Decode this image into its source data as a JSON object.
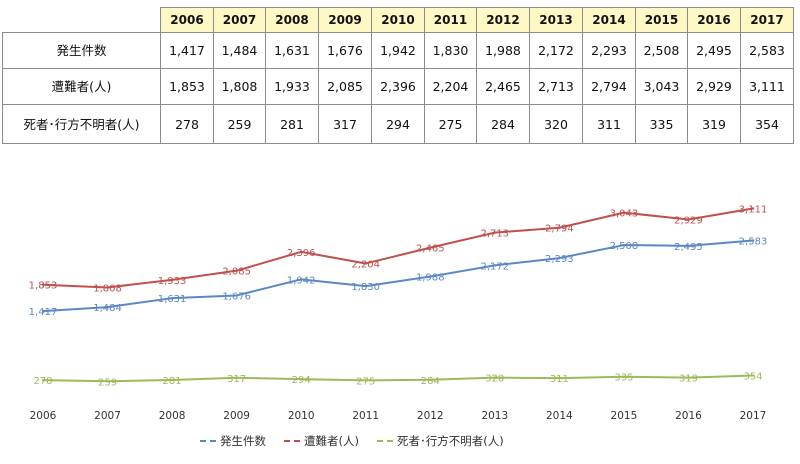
{
  "table": {
    "years": [
      "2006",
      "2007",
      "2008",
      "2009",
      "2010",
      "2011",
      "2012",
      "2013",
      "2014",
      "2015",
      "2016",
      "2017"
    ],
    "rows": [
      {
        "label": "発生件数",
        "values": [
          "1,417",
          "1,484",
          "1,631",
          "1,676",
          "1,942",
          "1,830",
          "1,988",
          "2,172",
          "2,293",
          "2,508",
          "2,495",
          "2,583"
        ]
      },
      {
        "label": "遭難者(人)",
        "values": [
          "1,853",
          "1,808",
          "1,933",
          "2,085",
          "2,396",
          "2,204",
          "2,465",
          "2,713",
          "2,794",
          "3,043",
          "2,929",
          "3,111"
        ]
      },
      {
        "label": "死者･行方不明者(人)",
        "values": [
          "278",
          "259",
          "281",
          "317",
          "294",
          "275",
          "284",
          "320",
          "311",
          "335",
          "319",
          "354"
        ]
      }
    ]
  },
  "chart_data": {
    "type": "line",
    "x": [
      "2006",
      "2007",
      "2008",
      "2009",
      "2010",
      "2011",
      "2012",
      "2013",
      "2014",
      "2015",
      "2016",
      "2017"
    ],
    "series": [
      {
        "name": "発生件数",
        "color": "#5b87c5",
        "values": [
          1417,
          1484,
          1631,
          1676,
          1942,
          1830,
          1988,
          2172,
          2293,
          2508,
          2495,
          2583
        ],
        "labels": [
          "1,417",
          "1,484",
          "1,631",
          "1,676",
          "1,942",
          "1,830",
          "1,988",
          "2,172",
          "2,293",
          "2,508",
          "2,495",
          "2,583"
        ]
      },
      {
        "name": "遭難者(人)",
        "color": "#c0504d",
        "values": [
          1853,
          1808,
          1933,
          2085,
          2396,
          2204,
          2465,
          2713,
          2794,
          3043,
          2929,
          3111
        ],
        "labels": [
          "1,853",
          "1,808",
          "1,933",
          "2,085",
          "2,396",
          "2,204",
          "2,465",
          "2,713",
          "2,794",
          "3,043",
          "2,929",
          "3,111"
        ]
      },
      {
        "name": "死者･行方不明者(人)",
        "color": "#9bbb59",
        "values": [
          278,
          259,
          281,
          317,
          294,
          275,
          284,
          320,
          311,
          335,
          319,
          354
        ],
        "labels": [
          "278",
          "259",
          "281",
          "317",
          "294",
          "275",
          "284",
          "320",
          "311",
          "335",
          "319",
          "354"
        ]
      }
    ],
    "title": "",
    "xlabel": "",
    "ylabel": "",
    "ylim": [
      0,
      3400
    ],
    "grid": false,
    "legend": "bottom",
    "line_style": "dashed"
  }
}
